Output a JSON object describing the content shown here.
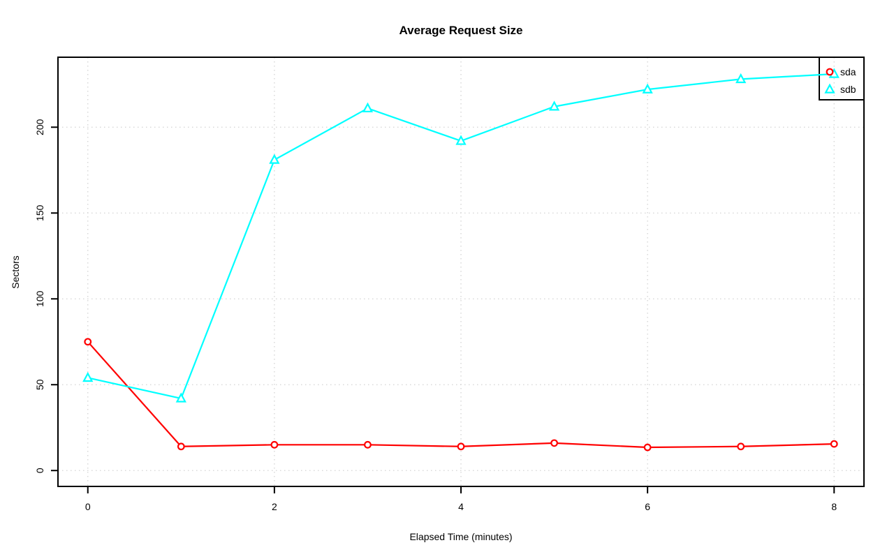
{
  "chart_data": {
    "type": "line",
    "title": "Average Request Size",
    "xlabel": "Elapsed Time (minutes)",
    "ylabel": "Sectors",
    "x": [
      0,
      1,
      2,
      3,
      4,
      5,
      6,
      7,
      8
    ],
    "series": [
      {
        "name": "sda",
        "color": "#FF0000",
        "marker": "circle",
        "values": [
          75,
          14,
          15,
          15,
          14,
          16,
          13.5,
          14,
          15.5
        ]
      },
      {
        "name": "sdb",
        "color": "#00FFFF",
        "marker": "triangle",
        "values": [
          54,
          42,
          181,
          211,
          192,
          212,
          222,
          228,
          231
        ]
      }
    ],
    "xticks": [
      0,
      2,
      4,
      6,
      8
    ],
    "yticks": [
      0,
      50,
      100,
      150,
      200
    ],
    "xlim": [
      0,
      8
    ],
    "ylim": [
      0,
      231.5
    ],
    "grid": true,
    "grid_color": "#D3D3D3",
    "axis_color": "#000000",
    "background": "#FFFFFF",
    "legend_position": "topright",
    "legend_labels": [
      "sda",
      "sdb"
    ]
  }
}
